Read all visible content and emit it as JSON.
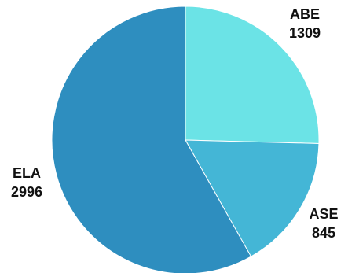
{
  "chart_data": {
    "type": "pie",
    "title": "",
    "slices": [
      {
        "label": "ABE",
        "value": 1309,
        "color": "#6BE3E6"
      },
      {
        "label": "ASE",
        "value": 845,
        "color": "#44B6D6"
      },
      {
        "label": "ELA",
        "value": 2996,
        "color": "#2E8EBF"
      }
    ],
    "start_angle": "12 o'clock",
    "direction": "clockwise",
    "labels": "outside, name above value",
    "legend": "none"
  }
}
